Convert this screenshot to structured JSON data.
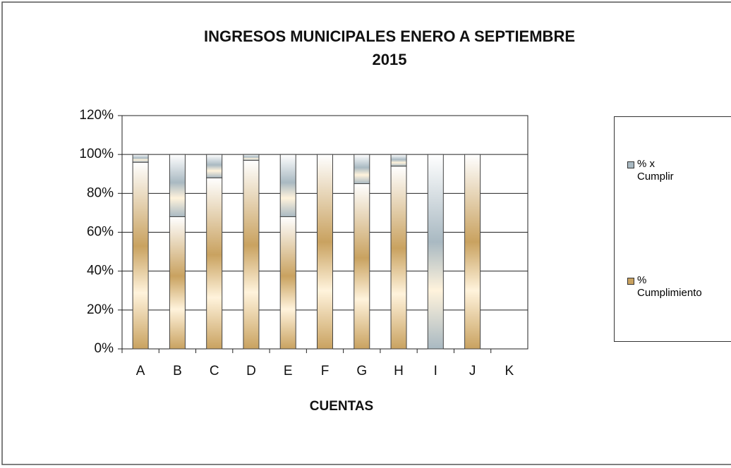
{
  "chart_data": {
    "type": "stacked_bar",
    "title": [
      "INGRESOS MUNICIPALES  ENERO A SEPTIEMBRE",
      "2015"
    ],
    "x_label": "CUENTAS",
    "categories": [
      "A",
      "B",
      "C",
      "D",
      "E",
      "F",
      "G",
      "H",
      "I",
      "J",
      "K"
    ],
    "series": [
      {
        "name": "% Cumplimiento",
        "color": "#c9a260",
        "values": [
          96,
          68,
          88,
          97,
          68,
          100,
          85,
          94,
          0,
          100,
          null
        ]
      },
      {
        "name": "% x Cumplir",
        "color": "#a9b9c2",
        "values": [
          4,
          32,
          12,
          3,
          32,
          0,
          15,
          6,
          100,
          0,
          null
        ]
      }
    ],
    "ylim": [
      0,
      120
    ],
    "yticks": [
      {
        "value": 0,
        "label": "0%"
      },
      {
        "value": 20,
        "label": "20%"
      },
      {
        "value": 40,
        "label": "40%"
      },
      {
        "value": 60,
        "label": "60%"
      },
      {
        "value": 80,
        "label": "80%"
      },
      {
        "value": 100,
        "label": "100%"
      },
      {
        "value": 120,
        "label": "120%"
      }
    ],
    "grid": true,
    "legend": "right"
  }
}
